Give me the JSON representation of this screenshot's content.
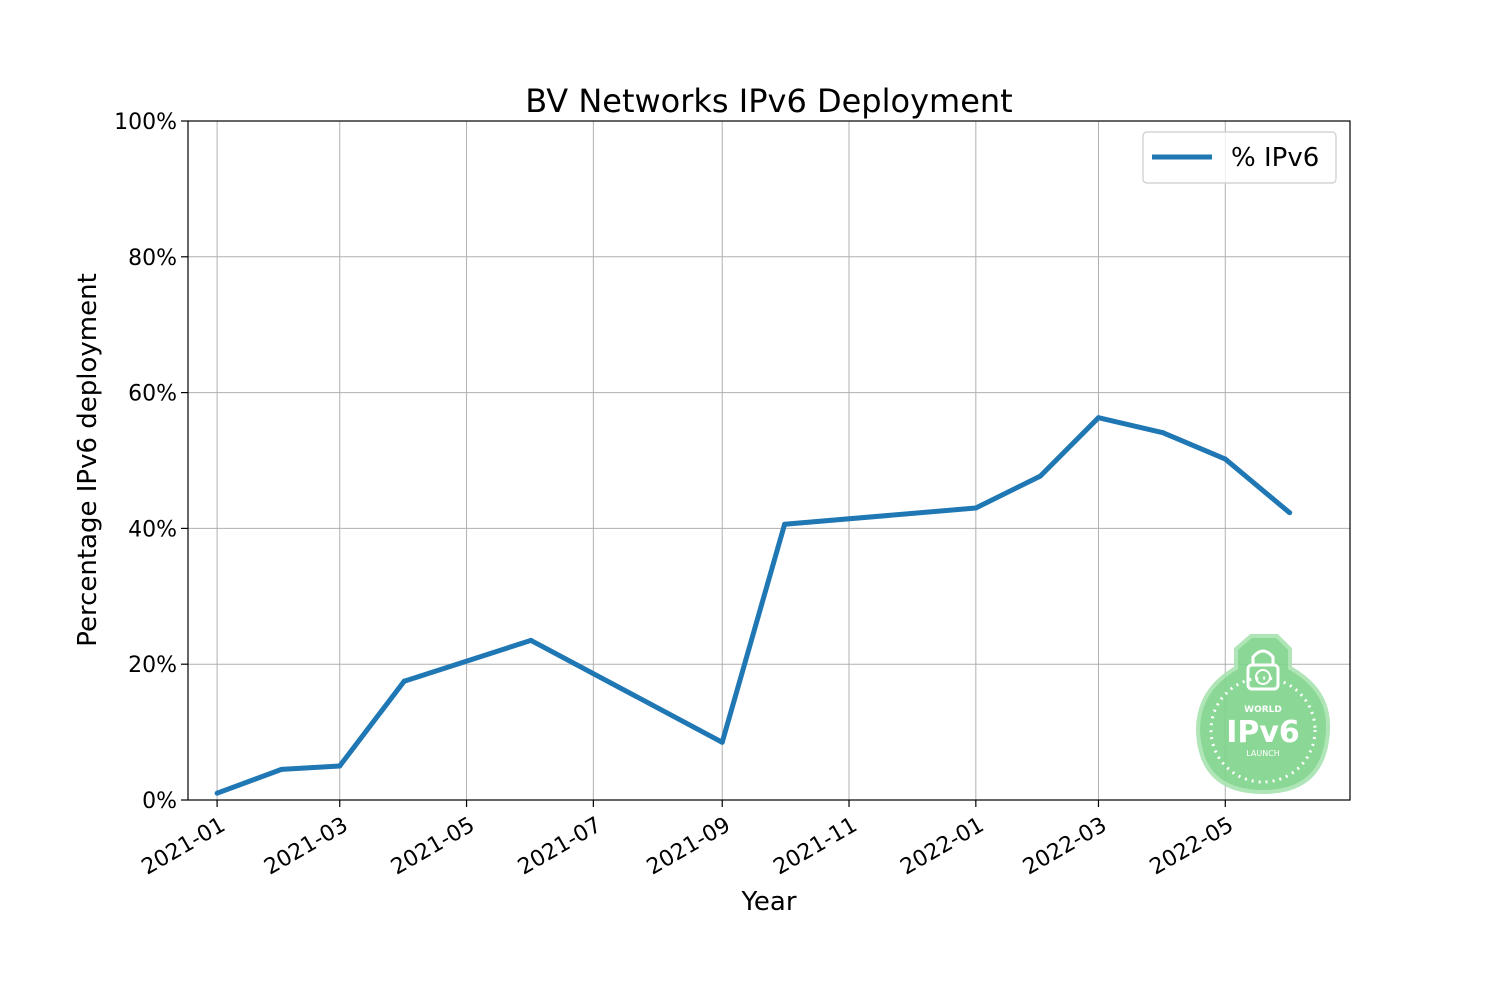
{
  "chart_data": {
    "type": "line",
    "title": "BV Networks IPv6 Deployment",
    "xlabel": "Year",
    "ylabel": "Percentage IPv6 deployment",
    "x_tick_labels": [
      "2021-01",
      "2021-03",
      "2021-05",
      "2021-07",
      "2021-09",
      "2021-11",
      "2022-01",
      "2022-03",
      "2022-05"
    ],
    "y_tick_labels": [
      "0%",
      "20%",
      "40%",
      "60%",
      "80%",
      "100%"
    ],
    "xlim": [
      "2020-12-18",
      "2022-06-30"
    ],
    "ylim": [
      0,
      100
    ],
    "grid": true,
    "legend_position": "upper right",
    "series": [
      {
        "name": "% IPv6",
        "color": "#1f77b4",
        "x": [
          "2021-01-01",
          "2021-02-01",
          "2021-03-01",
          "2021-04-01",
          "2021-06-01",
          "2021-09-01",
          "2021-10-01",
          "2022-01-01",
          "2022-02-01",
          "2022-03-01",
          "2022-04-01",
          "2022-05-01",
          "2022-06-01"
        ],
        "values": [
          1.0,
          4.5,
          5.0,
          17.5,
          23.5,
          8.5,
          40.6,
          43.0,
          47.7,
          56.3,
          54.1,
          50.2,
          42.3
        ]
      }
    ],
    "watermark": {
      "icon": "world-ipv6-launch-badge",
      "text_top": "WORLD",
      "text_main": "IPv6",
      "text_bottom": "LAUNCH",
      "color": "#6fcf7f"
    }
  }
}
